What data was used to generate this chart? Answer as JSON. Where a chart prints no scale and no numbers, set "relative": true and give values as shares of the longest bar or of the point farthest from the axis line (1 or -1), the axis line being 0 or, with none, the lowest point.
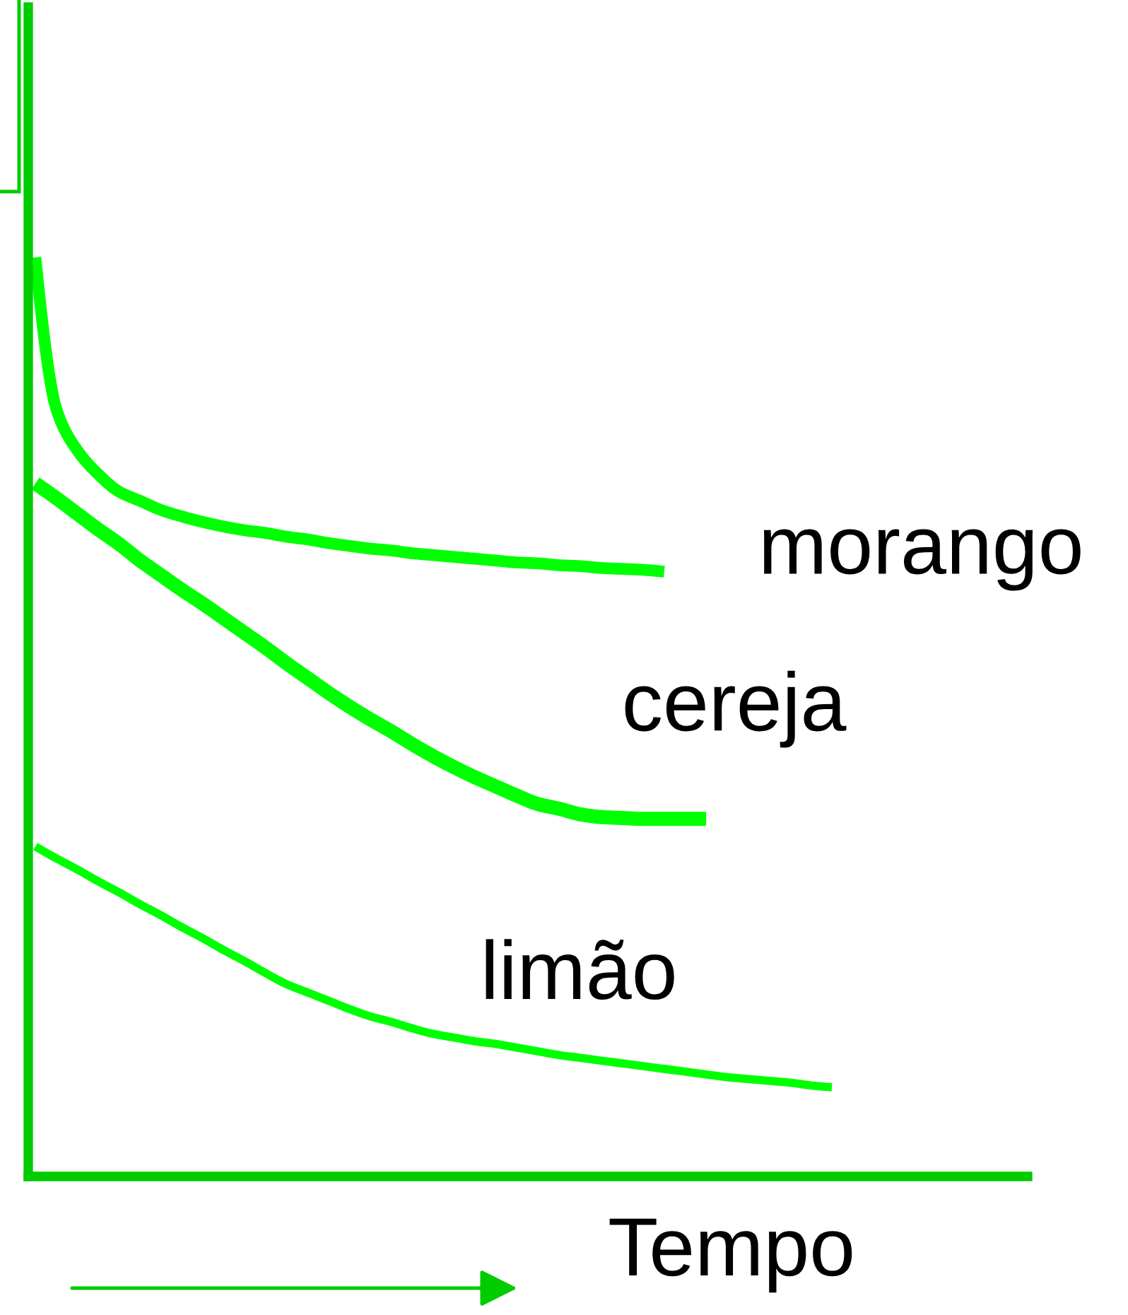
{
  "chart_data": {
    "type": "line",
    "relative": true,
    "xlabel": "Tempo",
    "tick_labels": false,
    "line_style": "solid",
    "categories": [
      null,
      null,
      null,
      null,
      null,
      null,
      null,
      null,
      null,
      null,
      null,
      null,
      null,
      null,
      null,
      null,
      null,
      null,
      null,
      null,
      null,
      null,
      null,
      null,
      null,
      null,
      null,
      null,
      null,
      null,
      null,
      null,
      null,
      null,
      null,
      null,
      null,
      null,
      null,
      null,
      null,
      null,
      null,
      null,
      null,
      null,
      null,
      null
    ],
    "series": [
      {
        "name": "morango",
        "color": "#00ff00",
        "values": [
          1.0,
          0.835,
          0.79,
          0.764,
          0.745,
          0.735,
          0.725,
          0.718,
          0.712,
          0.707,
          0.703,
          0.7,
          0.696,
          0.693,
          0.689,
          0.686,
          0.683,
          0.681,
          0.678,
          0.676,
          0.674,
          0.672,
          0.67,
          0.668,
          0.667,
          0.665,
          0.664,
          0.662,
          0.661,
          0.66,
          0.658,
          null,
          null,
          null,
          null,
          null,
          null,
          null,
          null,
          null,
          null,
          null,
          null,
          null,
          null,
          null,
          null,
          null
        ]
      },
      {
        "name": "cereja",
        "color": "#00ff00",
        "values": [
          0.754,
          0.738,
          0.721,
          0.704,
          0.688,
          0.67,
          0.654,
          0.638,
          0.623,
          0.607,
          0.591,
          0.575,
          0.558,
          0.542,
          0.526,
          0.511,
          0.497,
          0.484,
          0.47,
          0.457,
          0.445,
          0.434,
          0.424,
          0.414,
          0.405,
          0.4,
          0.394,
          0.391,
          0.39,
          0.389,
          0.389,
          0.389,
          0.389,
          null,
          null,
          null,
          null,
          null,
          null,
          null,
          null,
          null,
          null,
          null,
          null,
          null,
          null,
          null
        ]
      },
      {
        "name": "limão",
        "color": "#00ff00",
        "values": [
          0.359,
          0.346,
          0.334,
          0.321,
          0.309,
          0.296,
          0.284,
          0.271,
          0.259,
          0.246,
          0.234,
          0.221,
          0.209,
          0.2,
          0.191,
          0.182,
          0.174,
          0.168,
          0.161,
          0.155,
          0.151,
          0.147,
          0.144,
          0.14,
          0.136,
          0.132,
          0.129,
          0.126,
          0.123,
          0.12,
          0.117,
          0.114,
          0.111,
          0.108,
          0.106,
          0.104,
          0.102,
          0.099,
          0.097,
          null,
          null,
          null,
          null,
          null,
          null,
          null,
          null,
          null
        ]
      }
    ]
  }
}
